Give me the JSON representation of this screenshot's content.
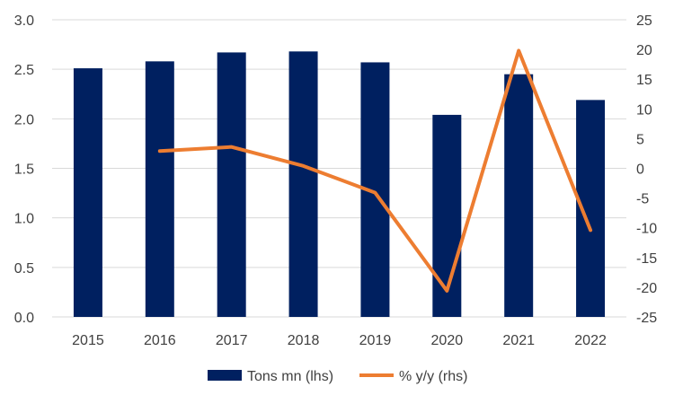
{
  "chart_data": {
    "type": "bar",
    "categories": [
      "2015",
      "2016",
      "2017",
      "2018",
      "2019",
      "2020",
      "2021",
      "2022"
    ],
    "series": [
      {
        "name": "Tons mn (lhs)",
        "type": "bar",
        "axis": "left",
        "color": "#002060",
        "values": [
          2.51,
          2.58,
          2.67,
          2.68,
          2.57,
          2.04,
          2.45,
          2.19
        ]
      },
      {
        "name": "% y/y (rhs)",
        "type": "line",
        "axis": "right",
        "color": "#ED7D31",
        "values": [
          null,
          2.9,
          3.6,
          0.4,
          -4.1,
          -20.6,
          19.8,
          -10.4
        ]
      }
    ],
    "y_left": {
      "min": 0,
      "max": 3,
      "ticks": [
        "0.0",
        "0.5",
        "1.0",
        "1.5",
        "2.0",
        "2.5",
        "3.0"
      ]
    },
    "y_right": {
      "min": -25,
      "max": 25,
      "ticks": [
        "-25",
        "-20",
        "-15",
        "-10",
        "-5",
        "0",
        "5",
        "10",
        "15",
        "20",
        "25"
      ]
    },
    "grid": true,
    "legend_position": "bottom"
  }
}
